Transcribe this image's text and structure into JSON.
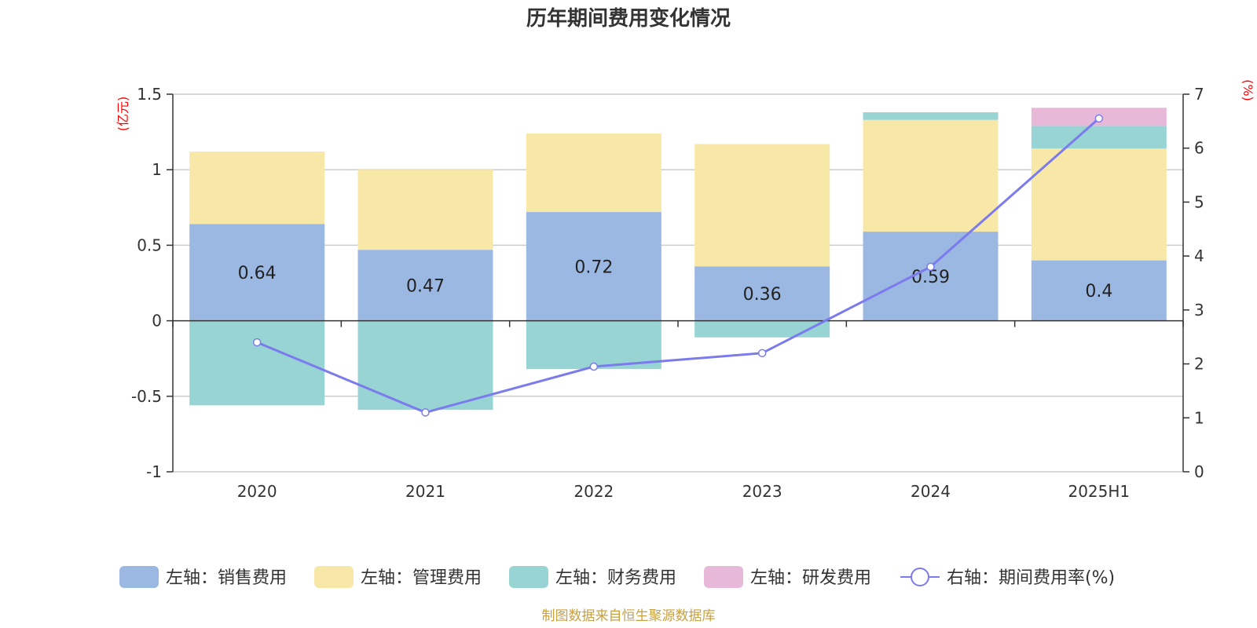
{
  "chart_data": {
    "type": "bar",
    "title": "历年期间费用变化情况",
    "categories": [
      "2020",
      "2021",
      "2022",
      "2023",
      "2024",
      "2025H1"
    ],
    "left_axis": {
      "unit": "(亿元)",
      "ylim": [
        -1,
        1.5
      ],
      "ticks": [
        -1,
        -0.5,
        0,
        0.5,
        1,
        1.5
      ],
      "tick_labels": [
        "-1",
        "-0.5",
        "0",
        "0.5",
        "1",
        "1.5"
      ]
    },
    "right_axis": {
      "unit": "(%)",
      "ylim": [
        0,
        7
      ],
      "ticks": [
        0,
        1,
        2,
        3,
        4,
        5,
        6,
        7
      ],
      "tick_labels": [
        "0",
        "1",
        "2",
        "3",
        "4",
        "5",
        "6",
        "7"
      ]
    },
    "series": [
      {
        "name": "左轴：销售费用",
        "type": "bar",
        "axis": "left",
        "color": "#9bb8e3",
        "values": [
          0.64,
          0.47,
          0.72,
          0.36,
          0.59,
          0.4
        ],
        "labels": [
          "0.64",
          "0.47",
          "0.72",
          "0.36",
          "0.59",
          "0.4"
        ]
      },
      {
        "name": "左轴：管理费用",
        "type": "bar",
        "axis": "left",
        "color": "#f8e8a8",
        "values": [
          0.48,
          0.53,
          0.52,
          0.81,
          0.74,
          0.74
        ]
      },
      {
        "name": "左轴：财务费用",
        "type": "bar",
        "axis": "left",
        "color": "#98d4d4",
        "values": [
          -0.56,
          -0.59,
          -0.32,
          -0.11,
          0.05,
          0.15
        ]
      },
      {
        "name": "左轴：研发费用",
        "type": "bar",
        "axis": "left",
        "color": "#e8b8d8",
        "values": [
          0,
          0,
          0,
          0,
          0,
          0.12
        ]
      },
      {
        "name": "右轴：期间费用率(%)",
        "type": "line",
        "axis": "right",
        "color": "#7b7bee",
        "values": [
          2.4,
          1.1,
          1.95,
          2.2,
          3.8,
          6.55
        ]
      }
    ],
    "grid": true,
    "legend": "bottom",
    "source": "制图数据来自恒生聚源数据库"
  }
}
